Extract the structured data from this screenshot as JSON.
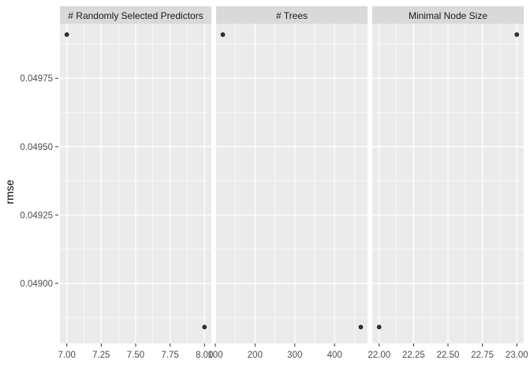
{
  "chart_data": {
    "type": "scatter",
    "ylabel": "rmse",
    "ylim": [
      0.04878,
      0.04995
    ],
    "y_ticks": [
      0.049,
      0.04925,
      0.0495,
      0.04975
    ],
    "y_tick_labels": [
      "0.04900",
      "0.04925",
      "0.04950",
      "0.04975"
    ],
    "grid": true,
    "panel_background": "#ebebeb",
    "strip_background": "#d9d9d9",
    "point_color": "#333333",
    "facets": [
      {
        "strip": "# Randomly Selected Predictors",
        "xlim": [
          6.95,
          8.05
        ],
        "x_ticks": [
          7.0,
          7.25,
          7.5,
          7.75,
          8.0
        ],
        "x_tick_labels": [
          "7.00",
          "7.25",
          "7.50",
          "7.75",
          "8.00"
        ],
        "points": [
          {
            "x": 7.0,
            "y": 0.04991
          },
          {
            "x": 8.0,
            "y": 0.04884
          }
        ]
      },
      {
        "strip": "# Trees",
        "xlim": [
          102,
          483
        ],
        "x_ticks": [
          100,
          200,
          300,
          400
        ],
        "x_tick_labels": [
          "100",
          "200",
          "300",
          "400"
        ],
        "points": [
          {
            "x": 119,
            "y": 0.04991
          },
          {
            "x": 466,
            "y": 0.04884
          }
        ]
      },
      {
        "strip": "Minimal Node Size",
        "xlim": [
          21.95,
          23.05
        ],
        "x_ticks": [
          22.0,
          22.25,
          22.5,
          22.75,
          23.0
        ],
        "x_tick_labels": [
          "22.00",
          "22.25",
          "22.50",
          "22.75",
          "23.00"
        ],
        "points": [
          {
            "x": 22.0,
            "y": 0.04884
          },
          {
            "x": 23.0,
            "y": 0.04991
          }
        ]
      }
    ]
  }
}
